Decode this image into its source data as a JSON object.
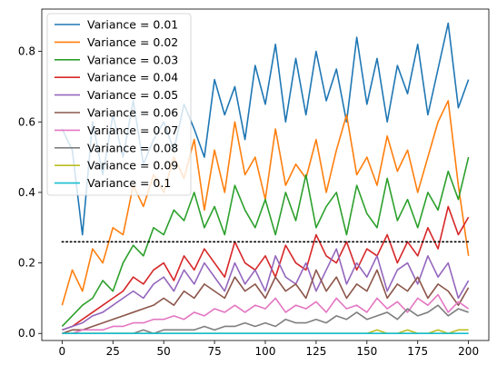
{
  "chart_data": {
    "type": "line",
    "title": "",
    "xlabel": "",
    "ylabel": "",
    "xlim": [
      -10,
      210
    ],
    "ylim": [
      -0.02,
      0.92
    ],
    "xticks": [
      0,
      25,
      50,
      75,
      100,
      125,
      150,
      175,
      200
    ],
    "yticks": [
      0.0,
      0.2,
      0.4,
      0.6,
      0.8
    ],
    "xtick_labels": [
      "0",
      "25",
      "50",
      "75",
      "100",
      "125",
      "150",
      "175",
      "200"
    ],
    "ytick_labels": [
      "0.0",
      "0.2",
      "0.4",
      "0.6",
      "0.8"
    ],
    "legend_position": "upper-left",
    "grid": false,
    "reference_line": {
      "y": 0.26,
      "x_start": 0,
      "x_end": 200,
      "style": "dotted",
      "color": "#000000"
    },
    "series": [
      {
        "name": "Variance = 0.01",
        "color": "#1f77b4",
        "x": [
          0,
          5,
          10,
          15,
          20,
          25,
          30,
          35,
          40,
          45,
          50,
          55,
          60,
          65,
          70,
          75,
          80,
          85,
          90,
          95,
          100,
          105,
          110,
          115,
          120,
          125,
          130,
          135,
          140,
          145,
          150,
          155,
          160,
          165,
          170,
          175,
          180,
          185,
          190,
          195,
          200
        ],
        "y": [
          0.58,
          0.52,
          0.28,
          0.6,
          0.45,
          0.62,
          0.5,
          0.66,
          0.48,
          0.55,
          0.6,
          0.52,
          0.65,
          0.58,
          0.5,
          0.72,
          0.62,
          0.7,
          0.55,
          0.76,
          0.65,
          0.82,
          0.6,
          0.78,
          0.62,
          0.8,
          0.66,
          0.75,
          0.6,
          0.84,
          0.65,
          0.78,
          0.6,
          0.76,
          0.68,
          0.82,
          0.62,
          0.75,
          0.88,
          0.64,
          0.72
        ]
      },
      {
        "name": "Variance = 0.02",
        "color": "#ff7f0e",
        "x": [
          0,
          5,
          10,
          15,
          20,
          25,
          30,
          35,
          40,
          45,
          50,
          55,
          60,
          65,
          70,
          75,
          80,
          85,
          90,
          95,
          100,
          105,
          110,
          115,
          120,
          125,
          130,
          135,
          140,
          145,
          150,
          155,
          160,
          165,
          170,
          175,
          180,
          185,
          190,
          195,
          200
        ],
        "y": [
          0.08,
          0.18,
          0.12,
          0.24,
          0.2,
          0.3,
          0.28,
          0.42,
          0.36,
          0.45,
          0.4,
          0.5,
          0.44,
          0.55,
          0.35,
          0.52,
          0.4,
          0.6,
          0.45,
          0.5,
          0.38,
          0.58,
          0.42,
          0.48,
          0.44,
          0.55,
          0.4,
          0.52,
          0.62,
          0.45,
          0.5,
          0.42,
          0.56,
          0.46,
          0.52,
          0.4,
          0.5,
          0.6,
          0.66,
          0.42,
          0.22
        ]
      },
      {
        "name": "Variance = 0.03",
        "color": "#2ca02c",
        "x": [
          0,
          5,
          10,
          15,
          20,
          25,
          30,
          35,
          40,
          45,
          50,
          55,
          60,
          65,
          70,
          75,
          80,
          85,
          90,
          95,
          100,
          105,
          110,
          115,
          120,
          125,
          130,
          135,
          140,
          145,
          150,
          155,
          160,
          165,
          170,
          175,
          180,
          185,
          190,
          195,
          200
        ],
        "y": [
          0.02,
          0.05,
          0.08,
          0.1,
          0.15,
          0.12,
          0.2,
          0.25,
          0.22,
          0.3,
          0.28,
          0.35,
          0.32,
          0.4,
          0.3,
          0.36,
          0.28,
          0.42,
          0.35,
          0.3,
          0.38,
          0.28,
          0.4,
          0.32,
          0.45,
          0.3,
          0.36,
          0.4,
          0.28,
          0.42,
          0.34,
          0.3,
          0.44,
          0.32,
          0.38,
          0.3,
          0.4,
          0.35,
          0.46,
          0.38,
          0.5
        ]
      },
      {
        "name": "Variance = 0.04",
        "color": "#d62728",
        "x": [
          0,
          5,
          10,
          15,
          20,
          25,
          30,
          35,
          40,
          45,
          50,
          55,
          60,
          65,
          70,
          75,
          80,
          85,
          90,
          95,
          100,
          105,
          110,
          115,
          120,
          125,
          130,
          135,
          140,
          145,
          150,
          155,
          160,
          165,
          170,
          175,
          180,
          185,
          190,
          195,
          200
        ],
        "y": [
          0.01,
          0.02,
          0.04,
          0.06,
          0.08,
          0.1,
          0.12,
          0.16,
          0.14,
          0.18,
          0.2,
          0.15,
          0.22,
          0.18,
          0.24,
          0.2,
          0.16,
          0.26,
          0.2,
          0.18,
          0.22,
          0.16,
          0.25,
          0.2,
          0.18,
          0.28,
          0.22,
          0.2,
          0.26,
          0.18,
          0.24,
          0.22,
          0.28,
          0.2,
          0.26,
          0.22,
          0.3,
          0.24,
          0.36,
          0.28,
          0.33
        ]
      },
      {
        "name": "Variance = 0.05",
        "color": "#9467bd",
        "x": [
          0,
          5,
          10,
          15,
          20,
          25,
          30,
          35,
          40,
          45,
          50,
          55,
          60,
          65,
          70,
          75,
          80,
          85,
          90,
          95,
          100,
          105,
          110,
          115,
          120,
          125,
          130,
          135,
          140,
          145,
          150,
          155,
          160,
          165,
          170,
          175,
          180,
          185,
          190,
          195,
          200
        ],
        "y": [
          0.01,
          0.02,
          0.03,
          0.05,
          0.06,
          0.08,
          0.1,
          0.12,
          0.1,
          0.14,
          0.16,
          0.12,
          0.18,
          0.14,
          0.2,
          0.16,
          0.12,
          0.2,
          0.14,
          0.18,
          0.12,
          0.22,
          0.16,
          0.14,
          0.2,
          0.12,
          0.18,
          0.24,
          0.14,
          0.2,
          0.16,
          0.22,
          0.12,
          0.18,
          0.2,
          0.14,
          0.22,
          0.16,
          0.2,
          0.1,
          0.15
        ]
      },
      {
        "name": "Variance = 0.06",
        "color": "#8c564b",
        "x": [
          0,
          5,
          10,
          15,
          20,
          25,
          30,
          35,
          40,
          45,
          50,
          55,
          60,
          65,
          70,
          75,
          80,
          85,
          90,
          95,
          100,
          105,
          110,
          115,
          120,
          125,
          130,
          135,
          140,
          145,
          150,
          155,
          160,
          165,
          170,
          175,
          180,
          185,
          190,
          195,
          200
        ],
        "y": [
          0.0,
          0.01,
          0.01,
          0.02,
          0.03,
          0.04,
          0.05,
          0.06,
          0.07,
          0.08,
          0.1,
          0.08,
          0.12,
          0.1,
          0.14,
          0.12,
          0.1,
          0.16,
          0.12,
          0.14,
          0.1,
          0.16,
          0.12,
          0.14,
          0.1,
          0.18,
          0.12,
          0.16,
          0.1,
          0.14,
          0.12,
          0.18,
          0.1,
          0.14,
          0.12,
          0.16,
          0.1,
          0.14,
          0.12,
          0.08,
          0.13
        ]
      },
      {
        "name": "Variance = 0.07",
        "color": "#e377c2",
        "x": [
          0,
          5,
          10,
          15,
          20,
          25,
          30,
          35,
          40,
          45,
          50,
          55,
          60,
          65,
          70,
          75,
          80,
          85,
          90,
          95,
          100,
          105,
          110,
          115,
          120,
          125,
          130,
          135,
          140,
          145,
          150,
          155,
          160,
          165,
          170,
          175,
          180,
          185,
          190,
          195,
          200
        ],
        "y": [
          0.0,
          0.0,
          0.01,
          0.01,
          0.01,
          0.02,
          0.02,
          0.03,
          0.03,
          0.04,
          0.04,
          0.05,
          0.04,
          0.06,
          0.05,
          0.07,
          0.06,
          0.08,
          0.06,
          0.08,
          0.07,
          0.1,
          0.06,
          0.08,
          0.07,
          0.09,
          0.06,
          0.1,
          0.07,
          0.08,
          0.06,
          0.1,
          0.07,
          0.09,
          0.06,
          0.1,
          0.08,
          0.11,
          0.06,
          0.09,
          0.07
        ]
      },
      {
        "name": "Variance = 0.08",
        "color": "#7f7f7f",
        "x": [
          0,
          5,
          10,
          15,
          20,
          25,
          30,
          35,
          40,
          45,
          50,
          55,
          60,
          65,
          70,
          75,
          80,
          85,
          90,
          95,
          100,
          105,
          110,
          115,
          120,
          125,
          130,
          135,
          140,
          145,
          150,
          155,
          160,
          165,
          170,
          175,
          180,
          185,
          190,
          195,
          200
        ],
        "y": [
          0.0,
          0.0,
          0.0,
          0.0,
          0.0,
          0.0,
          0.0,
          0.0,
          0.01,
          0.0,
          0.01,
          0.01,
          0.01,
          0.01,
          0.02,
          0.01,
          0.02,
          0.02,
          0.03,
          0.02,
          0.03,
          0.02,
          0.04,
          0.03,
          0.03,
          0.04,
          0.03,
          0.05,
          0.04,
          0.06,
          0.04,
          0.05,
          0.06,
          0.04,
          0.07,
          0.05,
          0.06,
          0.08,
          0.05,
          0.07,
          0.06
        ]
      },
      {
        "name": "Variance = 0.09",
        "color": "#bcbd22",
        "x": [
          0,
          5,
          10,
          15,
          20,
          25,
          30,
          35,
          40,
          45,
          50,
          55,
          60,
          65,
          70,
          75,
          80,
          85,
          90,
          95,
          100,
          105,
          110,
          115,
          120,
          125,
          130,
          135,
          140,
          145,
          150,
          155,
          160,
          165,
          170,
          175,
          180,
          185,
          190,
          195,
          200
        ],
        "y": [
          0.0,
          0.0,
          0.0,
          0.0,
          0.0,
          0.0,
          0.0,
          0.0,
          0.0,
          0.0,
          0.0,
          0.0,
          0.0,
          0.0,
          0.0,
          0.0,
          0.0,
          0.0,
          0.0,
          0.0,
          0.0,
          0.0,
          0.0,
          0.0,
          0.0,
          0.0,
          0.0,
          0.0,
          0.0,
          0.0,
          0.0,
          0.01,
          0.0,
          0.0,
          0.01,
          0.0,
          0.0,
          0.01,
          0.0,
          0.01,
          0.01
        ]
      },
      {
        "name": "Variance = 0.1",
        "color": "#17becf",
        "x": [
          0,
          200
        ],
        "y": [
          0.0,
          0.0
        ]
      }
    ]
  }
}
